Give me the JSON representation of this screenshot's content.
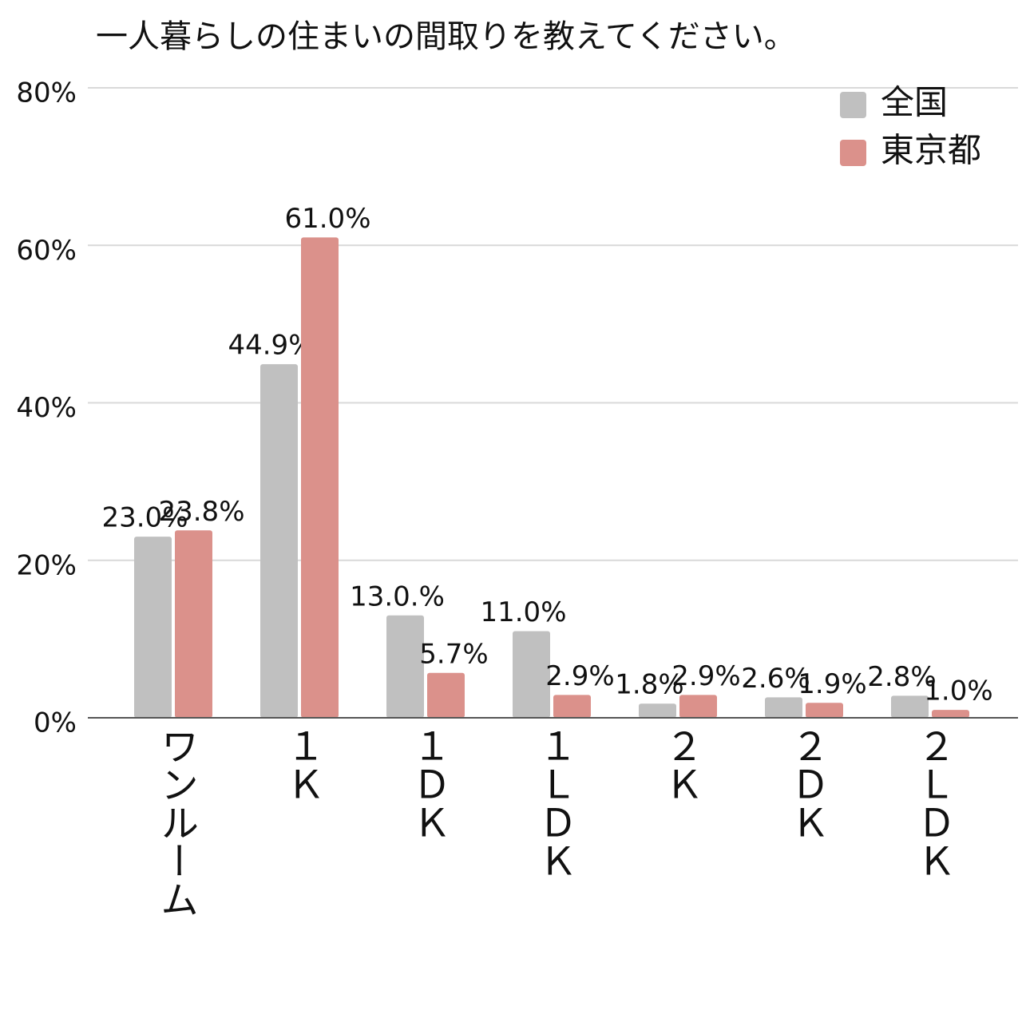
{
  "chart_data": {
    "type": "bar",
    "title": "一人暮らしの住まいの間取りを教えてください。",
    "categories": [
      "ワンルーム",
      "１Ｋ",
      "１ＤＫ",
      "１ＬＤＫ",
      "２Ｋ",
      "２ＤＫ",
      "２ＬＤＫ"
    ],
    "series": [
      {
        "name": "全国",
        "color": "#c0c0c0",
        "values": [
          23.0,
          44.9,
          13.0,
          11.0,
          1.8,
          2.6,
          2.8
        ],
        "value_labels": [
          "23.0%",
          "44.9%",
          "13.0.%",
          "11.0%",
          "1.8%",
          "2.6%",
          "2.8%"
        ]
      },
      {
        "name": "東京都",
        "color": "#db918b",
        "values": [
          23.8,
          61.0,
          5.7,
          2.9,
          2.9,
          1.9,
          1.0
        ],
        "value_labels": [
          "23.8%",
          "61.0%",
          "5.7%",
          "2.9%",
          "2.9%",
          "1.9%",
          "1.0%"
        ]
      }
    ],
    "ylim": [
      0,
      80
    ],
    "yticks": [
      {
        "value": 0,
        "label": "0%"
      },
      {
        "value": 20,
        "label": "20%"
      },
      {
        "value": 40,
        "label": "40%"
      },
      {
        "value": 60,
        "label": "60%"
      },
      {
        "value": 80,
        "label": "80%"
      }
    ],
    "grid": true,
    "legend": "top-right"
  }
}
